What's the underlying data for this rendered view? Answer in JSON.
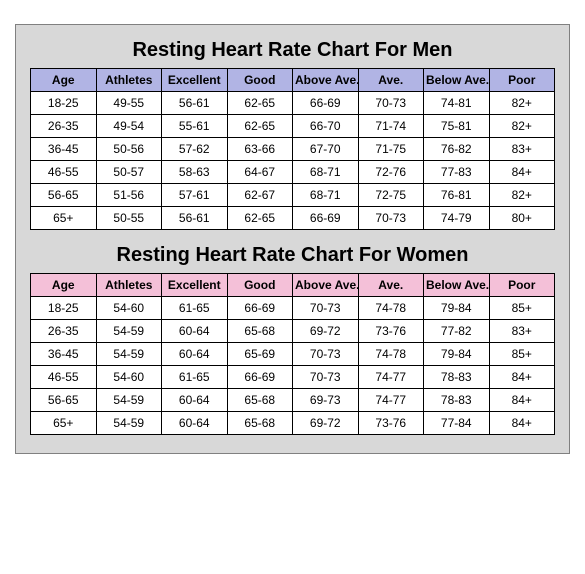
{
  "background_color": "#d8d8d8",
  "border_color": "#808080",
  "cell_border_color": "#000000",
  "title_fontsize": 20,
  "cell_fontsize": 12,
  "tables": [
    {
      "title": "Resting Heart Rate Chart For Men",
      "header_bg": "#b1b4e4",
      "columns": [
        "Age",
        "Athletes",
        "Excellent",
        "Good",
        "Above Ave.",
        "Ave.",
        "Below Ave.",
        "Poor"
      ],
      "rows": [
        [
          "18-25",
          "49-55",
          "56-61",
          "62-65",
          "66-69",
          "70-73",
          "74-81",
          "82+"
        ],
        [
          "26-35",
          "49-54",
          "55-61",
          "62-65",
          "66-70",
          "71-74",
          "75-81",
          "82+"
        ],
        [
          "36-45",
          "50-56",
          "57-62",
          "63-66",
          "67-70",
          "71-75",
          "76-82",
          "83+"
        ],
        [
          "46-55",
          "50-57",
          "58-63",
          "64-67",
          "68-71",
          "72-76",
          "77-83",
          "84+"
        ],
        [
          "56-65",
          "51-56",
          "57-61",
          "62-67",
          "68-71",
          "72-75",
          "76-81",
          "82+"
        ],
        [
          "65+",
          "50-55",
          "56-61",
          "62-65",
          "66-69",
          "70-73",
          "74-79",
          "80+"
        ]
      ]
    },
    {
      "title": "Resting Heart Rate Chart For Women",
      "header_bg": "#f4c0d8",
      "columns": [
        "Age",
        "Athletes",
        "Excellent",
        "Good",
        "Above Ave.",
        "Ave.",
        "Below Ave.",
        "Poor"
      ],
      "rows": [
        [
          "18-25",
          "54-60",
          "61-65",
          "66-69",
          "70-73",
          "74-78",
          "79-84",
          "85+"
        ],
        [
          "26-35",
          "54-59",
          "60-64",
          "65-68",
          "69-72",
          "73-76",
          "77-82",
          "83+"
        ],
        [
          "36-45",
          "54-59",
          "60-64",
          "65-69",
          "70-73",
          "74-78",
          "79-84",
          "85+"
        ],
        [
          "46-55",
          "54-60",
          "61-65",
          "66-69",
          "70-73",
          "74-77",
          "78-83",
          "84+"
        ],
        [
          "56-65",
          "54-59",
          "60-64",
          "65-68",
          "69-73",
          "74-77",
          "78-83",
          "84+"
        ],
        [
          "65+",
          "54-59",
          "60-64",
          "65-68",
          "69-72",
          "73-76",
          "77-84",
          "84+"
        ]
      ]
    }
  ]
}
